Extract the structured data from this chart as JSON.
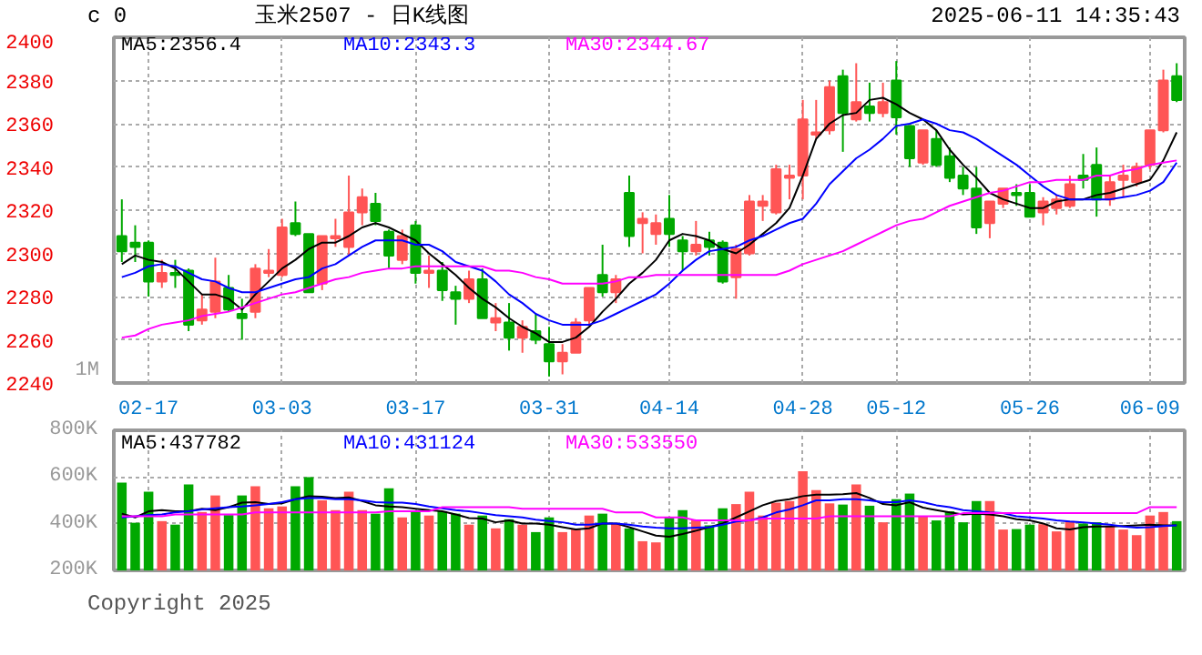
{
  "chart_data": [
    {
      "type": "candlestick",
      "title": "玉米2507 - 日K线图",
      "subtitle": "2025-06-11 14:35:43",
      "annotations": [
        "c 0",
        "1M"
      ],
      "categories": [
        null,
        null,
        "02-17",
        null,
        null,
        null,
        null,
        null,
        null,
        null,
        null,
        null,
        "03-03",
        null,
        null,
        null,
        null,
        null,
        null,
        null,
        null,
        null,
        "03-17",
        null,
        null,
        null,
        null,
        null,
        null,
        null,
        null,
        null,
        "03-31",
        null,
        null,
        null,
        null,
        null,
        null,
        null,
        null,
        "04-14",
        null,
        null,
        null,
        null,
        null,
        null,
        null,
        null,
        null,
        "04-28",
        null,
        null,
        null,
        null,
        null,
        null,
        "05-12",
        null,
        null,
        null,
        null,
        null,
        null,
        null,
        null,
        null,
        "05-26",
        null,
        null,
        null,
        null,
        null,
        null,
        null,
        null,
        "06-09",
        null,
        null
      ],
      "ohlc": [
        [
          2308,
          2325,
          2296,
          2301
        ],
        [
          2305,
          2313,
          2296,
          2303
        ],
        [
          2305,
          2306,
          2280,
          2287
        ],
        [
          2287,
          2297,
          2284,
          2291
        ],
        [
          2291,
          2297,
          2284,
          2290
        ],
        [
          2292,
          2293,
          2264,
          2267
        ],
        [
          2269,
          2281,
          2267,
          2274
        ],
        [
          2273,
          2298,
          2270,
          2287
        ],
        [
          2284,
          2290,
          2273,
          2274
        ],
        [
          2272,
          2279,
          2260,
          2270
        ],
        [
          2273,
          2295,
          2270,
          2293
        ],
        [
          2291,
          2302,
          2289,
          2292
        ],
        [
          2290,
          2316,
          2289,
          2312
        ],
        [
          2314,
          2324,
          2308,
          2309
        ],
        [
          2309,
          2309,
          2282,
          2282
        ],
        [
          2286,
          2308,
          2283,
          2308
        ],
        [
          2307,
          2316,
          2303,
          2308
        ],
        [
          2303,
          2336,
          2299,
          2319
        ],
        [
          2319,
          2330,
          2313,
          2326
        ],
        [
          2323,
          2328,
          2313,
          2315
        ],
        [
          2310,
          2311,
          2293,
          2299
        ],
        [
          2297,
          2311,
          2295,
          2308
        ],
        [
          2313,
          2315,
          2286,
          2291
        ],
        [
          2291,
          2299,
          2284,
          2292
        ],
        [
          2292,
          2296,
          2278,
          2283
        ],
        [
          2282,
          2285,
          2267,
          2279
        ],
        [
          2279,
          2292,
          2277,
          2288
        ],
        [
          2288,
          2293,
          2270,
          2270
        ],
        [
          2268,
          2277,
          2264,
          2270
        ],
        [
          2268,
          2277,
          2255,
          2261
        ],
        [
          2261,
          2269,
          2254,
          2266
        ],
        [
          2264,
          2272,
          2258,
          2260
        ],
        [
          2258,
          2266,
          2243,
          2250
        ],
        [
          2250,
          2258,
          2244,
          2254
        ],
        [
          2254,
          2270,
          2254,
          2268
        ],
        [
          2269,
          2284,
          2267,
          2284
        ],
        [
          2290,
          2304,
          2280,
          2282
        ],
        [
          2282,
          2290,
          2277,
          2288
        ],
        [
          2328,
          2336,
          2303,
          2308
        ],
        [
          2314,
          2319,
          2300,
          2316
        ],
        [
          2309,
          2318,
          2304,
          2314
        ],
        [
          2316,
          2327,
          2303,
          2309
        ],
        [
          2306,
          2308,
          2292,
          2301
        ],
        [
          2301,
          2315,
          2299,
          2304
        ],
        [
          2306,
          2310,
          2299,
          2303
        ],
        [
          2305,
          2306,
          2286,
          2287
        ],
        [
          2289,
          2304,
          2279,
          2302
        ],
        [
          2300,
          2327,
          2299,
          2324
        ],
        [
          2322,
          2327,
          2315,
          2324
        ],
        [
          2319,
          2341,
          2318,
          2339
        ],
        [
          2335,
          2341,
          2325,
          2336
        ],
        [
          2336,
          2371,
          2325,
          2362
        ],
        [
          2355,
          2371,
          2353,
          2356
        ],
        [
          2357,
          2380,
          2355,
          2377
        ],
        [
          2382,
          2385,
          2347,
          2365
        ],
        [
          2362,
          2388,
          2361,
          2370
        ],
        [
          2368,
          2379,
          2361,
          2365
        ],
        [
          2365,
          2379,
          2363,
          2370
        ],
        [
          2380,
          2389,
          2355,
          2363
        ],
        [
          2359,
          2359,
          2340,
          2344
        ],
        [
          2342,
          2357,
          2341,
          2357
        ],
        [
          2353,
          2357,
          2340,
          2341
        ],
        [
          2345,
          2349,
          2333,
          2335
        ],
        [
          2336,
          2340,
          2327,
          2330
        ],
        [
          2330,
          2340,
          2309,
          2312
        ],
        [
          2314,
          2324,
          2307,
          2324
        ],
        [
          2323,
          2330,
          2321,
          2330
        ],
        [
          2328,
          2332,
          2322,
          2327
        ],
        [
          2328,
          2332,
          2317,
          2317
        ],
        [
          2319,
          2326,
          2313,
          2324
        ],
        [
          2321,
          2327,
          2318,
          2325
        ],
        [
          2322,
          2336,
          2321,
          2332
        ],
        [
          2336,
          2346,
          2330,
          2334
        ],
        [
          2341,
          2349,
          2317,
          2325
        ],
        [
          2325,
          2336,
          2322,
          2333
        ],
        [
          2334,
          2341,
          2326,
          2336
        ],
        [
          2333,
          2342,
          2331,
          2340
        ],
        [
          2341,
          2357,
          2339,
          2357
        ],
        [
          2357,
          2385,
          2356,
          2380
        ],
        [
          2382,
          2388,
          2370,
          2371
        ]
      ],
      "colors": [
        "#00a800",
        "#00a800",
        "#00a800",
        "#ff5555",
        "#00a800",
        "#00a800",
        "#ff5555",
        "#ff5555",
        "#00a800",
        "#00a800",
        "#ff5555",
        "#ff5555",
        "#ff5555",
        "#00a800",
        "#00a800",
        "#ff5555",
        "#ff5555",
        "#ff5555",
        "#ff5555",
        "#00a800",
        "#00a800",
        "#ff5555",
        "#00a800",
        "#ff5555",
        "#00a800",
        "#00a800",
        "#ff5555",
        "#00a800",
        "#ff5555",
        "#00a800",
        "#ff5555",
        "#00a800",
        "#00a800",
        "#ff5555",
        "#ff5555",
        "#ff5555",
        "#00a800",
        "#ff5555",
        "#00a800",
        "#ff5555",
        "#ff5555",
        "#00a800",
        "#00a800",
        "#ff5555",
        "#00a800",
        "#00a800",
        "#ff5555",
        "#ff5555",
        "#ff5555",
        "#ff5555",
        "#ff5555",
        "#ff5555",
        "#ff5555",
        "#ff5555",
        "#00a800",
        "#ff5555",
        "#00a800",
        "#ff5555",
        "#00a800",
        "#00a800",
        "#ff5555",
        "#00a800",
        "#00a800",
        "#00a800",
        "#00a800",
        "#ff5555",
        "#ff5555",
        "#00a800",
        "#00a800",
        "#ff5555",
        "#ff5555",
        "#ff5555",
        "#00a800",
        "#00a800",
        "#ff5555",
        "#ff5555",
        "#ff5555",
        "#ff5555",
        "#ff5555",
        "#00a800"
      ],
      "series": [
        {
          "name": "MA5:2356.4",
          "color": "#000000",
          "type": "line",
          "values": [
            2295,
            2299,
            2297,
            2296,
            2293,
            2287,
            2281,
            2281,
            2279,
            2274,
            2281,
            2287,
            2293,
            2297,
            2302,
            2305,
            2305,
            2308,
            2312,
            2314,
            2312,
            2309,
            2306,
            2300,
            2295,
            2290,
            2284,
            2279,
            2275,
            2270,
            2266,
            2263,
            2259,
            2259,
            2261,
            2266,
            2273,
            2279,
            2286,
            2291,
            2297,
            2306,
            2309,
            2308,
            2306,
            2302,
            2300,
            2304,
            2309,
            2314,
            2321,
            2336,
            2353,
            2360,
            2364,
            2365,
            2371,
            2372,
            2369,
            2365,
            2362,
            2357,
            2348,
            2341,
            2335,
            2328,
            2325,
            2323,
            2321,
            2321,
            2324,
            2325,
            2325,
            2327,
            2328,
            2330,
            2332,
            2334,
            2343,
            2356
          ]
        },
        {
          "name": "MA10:2343.3",
          "color": "#0000ff",
          "type": "line",
          "values": [
            2289,
            2291,
            2294,
            2295,
            2294,
            2291,
            2288,
            2287,
            2284,
            2282,
            2282,
            2284,
            2286,
            2288,
            2289,
            2293,
            2295,
            2299,
            2303,
            2306,
            2306,
            2306,
            2304,
            2304,
            2301,
            2296,
            2294,
            2292,
            2287,
            2281,
            2277,
            2272,
            2269,
            2267,
            2267,
            2267,
            2269,
            2272,
            2275,
            2278,
            2281,
            2286,
            2292,
            2297,
            2301,
            2302,
            2303,
            2306,
            2308,
            2311,
            2314,
            2316,
            2323,
            2332,
            2338,
            2344,
            2348,
            2353,
            2359,
            2360,
            2362,
            2360,
            2357,
            2356,
            2353,
            2349,
            2345,
            2341,
            2336,
            2331,
            2327,
            2325,
            2325,
            2325,
            2325,
            2326,
            2327,
            2329,
            2333,
            2342
          ]
        },
        {
          "name": "MA30:2344.67",
          "color": "#ff00ff",
          "type": "line",
          "values": [
            2261,
            2262,
            2265,
            2267,
            2268,
            2269,
            2271,
            2272,
            2273,
            2275,
            2277,
            2279,
            2281,
            2282,
            2284,
            2286,
            2288,
            2289,
            2291,
            2292,
            2293,
            2293,
            2294,
            2294,
            2294,
            2294,
            2294,
            2294,
            2292,
            2292,
            2291,
            2289,
            2288,
            2286,
            2286,
            2286,
            2286,
            2287,
            2289,
            2289,
            2290,
            2290,
            2290,
            2290,
            2290,
            2290,
            2290,
            2290,
            2290,
            2290,
            2292,
            2295,
            2297,
            2299,
            2301,
            2304,
            2307,
            2310,
            2313,
            2315,
            2316,
            2319,
            2322,
            2324,
            2326,
            2328,
            2329,
            2331,
            2333,
            2333,
            2334,
            2334,
            2334,
            2336,
            2336,
            2338,
            2339,
            2341,
            2342,
            2343
          ]
        }
      ],
      "ylim": [
        2240,
        2400
      ],
      "yticks": [
        2240,
        2260,
        2280,
        2300,
        2320,
        2340,
        2360,
        2380,
        2400
      ],
      "grid": true,
      "legend": "top left"
    },
    {
      "type": "bar",
      "annotations": [
        "Copyright 2025"
      ],
      "categories": [
        null,
        null,
        null,
        null,
        null,
        null,
        null,
        null,
        null,
        null,
        null,
        null,
        null,
        null,
        null,
        null,
        null,
        null,
        null,
        null,
        null,
        null,
        null,
        null,
        null,
        null,
        null,
        null,
        null,
        null,
        null,
        null,
        null,
        null,
        null,
        null,
        null,
        null,
        null,
        null,
        null,
        null,
        null,
        null,
        null,
        null,
        null,
        null,
        null,
        null,
        null,
        null,
        null,
        null,
        null,
        null,
        null,
        null,
        null,
        null,
        null,
        null,
        null,
        null,
        null,
        null,
        null,
        null,
        null,
        null,
        null,
        null,
        null,
        null,
        null,
        null,
        null,
        null,
        null,
        null
      ],
      "series": [
        {
          "type": "bar",
          "colors": [
            "#00a800",
            "#00a800",
            "#00a800",
            "#ff5555",
            "#00a800",
            "#00a800",
            "#ff5555",
            "#ff5555",
            "#00a800",
            "#00a800",
            "#ff5555",
            "#ff5555",
            "#ff5555",
            "#00a800",
            "#00a800",
            "#ff5555",
            "#ff5555",
            "#ff5555",
            "#ff5555",
            "#00a800",
            "#00a800",
            "#ff5555",
            "#00a800",
            "#ff5555",
            "#00a800",
            "#00a800",
            "#ff5555",
            "#00a800",
            "#ff5555",
            "#00a800",
            "#ff5555",
            "#00a800",
            "#00a800",
            "#ff5555",
            "#ff5555",
            "#ff5555",
            "#00a800",
            "#ff5555",
            "#00a800",
            "#ff5555",
            "#ff5555",
            "#00a800",
            "#00a800",
            "#ff5555",
            "#00a800",
            "#00a800",
            "#ff5555",
            "#ff5555",
            "#ff5555",
            "#ff5555",
            "#ff5555",
            "#ff5555",
            "#ff5555",
            "#ff5555",
            "#00a800",
            "#ff5555",
            "#00a800",
            "#ff5555",
            "#00a800",
            "#00a800",
            "#ff5555",
            "#00a800",
            "#00a800",
            "#00a800",
            "#00a800",
            "#ff5555",
            "#ff5555",
            "#00a800",
            "#00a800",
            "#ff5555",
            "#ff5555",
            "#ff5555",
            "#00a800",
            "#00a800",
            "#ff5555",
            "#ff5555",
            "#ff5555",
            "#ff5555",
            "#ff5555",
            "#00a800"
          ],
          "values": [
            576000,
            404000,
            537000,
            411000,
            396000,
            568000,
            450000,
            521000,
            437000,
            521000,
            560000,
            466000,
            474000,
            560000,
            599000,
            500000,
            458000,
            537000,
            458000,
            443000,
            552000,
            427000,
            456000,
            435000,
            453000,
            443000,
            396000,
            435000,
            380000,
            419000,
            396000,
            364000,
            427000,
            364000,
            375000,
            435000,
            443000,
            401000,
            380000,
            325000,
            320000,
            427000,
            458000,
            417000,
            393000,
            466000,
            484000,
            537000,
            435000,
            490000,
            497000,
            625000,
            544000,
            487000,
            482000,
            568000,
            477000,
            406000,
            505000,
            529000,
            430000,
            414000,
            453000,
            406000,
            497000,
            497000,
            375000,
            377000,
            396000,
            398000,
            367000,
            411000,
            401000,
            406000,
            388000,
            375000,
            351000,
            435000,
            450000,
            411000
          ]
        },
        {
          "name": "MA5:437782",
          "color": "#000000",
          "type": "line",
          "values": [
            443000,
            427000,
            453000,
            458000,
            453000,
            453000,
            464000,
            458000,
            471000,
            490000,
            492000,
            484000,
            487000,
            505000,
            518000,
            516000,
            510000,
            513000,
            497000,
            479000,
            474000,
            471000,
            464000,
            458000,
            453000,
            440000,
            424000,
            422000,
            406000,
            414000,
            401000,
            401000,
            396000,
            385000,
            375000,
            380000,
            401000,
            401000,
            385000,
            367000,
            349000,
            344000,
            356000,
            370000,
            385000,
            401000,
            427000,
            453000,
            479000,
            497000,
            505000,
            518000,
            524000,
            524000,
            526000,
            531000,
            510000,
            484000,
            479000,
            492000,
            469000,
            458000,
            448000,
            440000,
            443000,
            440000,
            432000,
            419000,
            414000,
            401000,
            380000,
            375000,
            385000,
            388000,
            388000,
            390000,
            393000,
            396000,
            393000,
            393000
          ]
        },
        {
          "name": "MA10:431124",
          "color": "#0000ff",
          "type": "line",
          "values": [
            427000,
            432000,
            437000,
            440000,
            448000,
            453000,
            461000,
            466000,
            471000,
            474000,
            479000,
            484000,
            492000,
            505000,
            510000,
            510000,
            505000,
            505000,
            500000,
            492000,
            490000,
            490000,
            484000,
            474000,
            466000,
            458000,
            453000,
            445000,
            437000,
            432000,
            427000,
            417000,
            411000,
            406000,
            396000,
            396000,
            401000,
            401000,
            396000,
            388000,
            383000,
            380000,
            380000,
            383000,
            385000,
            396000,
            409000,
            414000,
            427000,
            448000,
            461000,
            479000,
            500000,
            500000,
            505000,
            505000,
            500000,
            492000,
            492000,
            500000,
            492000,
            479000,
            471000,
            458000,
            453000,
            448000,
            445000,
            432000,
            427000,
            422000,
            414000,
            409000,
            406000,
            401000,
            396000,
            388000,
            383000,
            385000,
            390000,
            393000
          ]
        },
        {
          "name": "MA30:533550",
          "color": "#ff00ff",
          "type": "line",
          "values": [
            432000,
            432000,
            432000,
            432000,
            440000,
            440000,
            440000,
            440000,
            440000,
            440000,
            448000,
            448000,
            448000,
            448000,
            448000,
            448000,
            448000,
            448000,
            448000,
            448000,
            453000,
            453000,
            453000,
            453000,
            471000,
            471000,
            471000,
            471000,
            471000,
            471000,
            464000,
            464000,
            464000,
            464000,
            464000,
            464000,
            464000,
            448000,
            448000,
            448000,
            427000,
            427000,
            427000,
            414000,
            414000,
            414000,
            414000,
            414000,
            422000,
            422000,
            422000,
            422000,
            422000,
            432000,
            432000,
            432000,
            432000,
            432000,
            432000,
            432000,
            432000,
            432000,
            432000,
            445000,
            445000,
            445000,
            445000,
            445000,
            445000,
            445000,
            445000,
            445000,
            445000,
            445000,
            445000,
            445000,
            445000,
            471000,
            471000,
            471000
          ]
        }
      ],
      "ylim": [
        200000,
        800000
      ],
      "yticks": [
        {
          "value": 200000,
          "label": "200K"
        },
        {
          "value": 400000,
          "label": "400K"
        },
        {
          "value": 600000,
          "label": "600K"
        },
        {
          "value": 800000,
          "label": "800K"
        }
      ],
      "grid": true,
      "legend": "top left",
      "tick_labels": "y"
    }
  ]
}
